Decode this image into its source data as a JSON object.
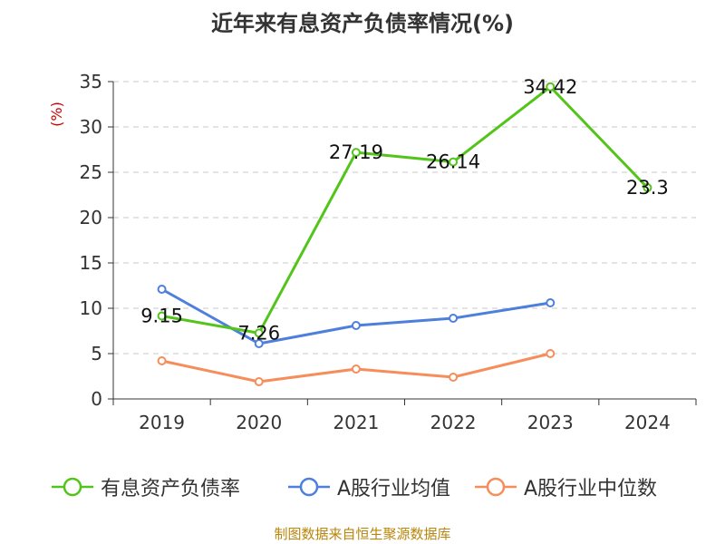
{
  "chart_data": {
    "type": "line",
    "title": "近年来有息资产负债率情况(%)",
    "ylabel": "(%)",
    "categories": [
      "2019",
      "2020",
      "2021",
      "2022",
      "2023",
      "2024"
    ],
    "ylim": [
      0,
      35
    ],
    "yticks": [
      "0",
      "5",
      "10",
      "15",
      "20",
      "25",
      "30",
      "35"
    ],
    "grid": true,
    "legend_position": "bottom",
    "series": [
      {
        "name": "有息资产负债率",
        "color": "#52c41a",
        "values": [
          9.15,
          7.26,
          27.19,
          26.14,
          34.42,
          23.3
        ],
        "labels": [
          "9.15",
          "7.26",
          "27.19",
          "26.14",
          "34.42",
          "23.3"
        ]
      },
      {
        "name": "A股行业均值",
        "color": "#4e7fdc",
        "values": [
          12.1,
          6.1,
          8.1,
          8.9,
          10.6,
          null
        ]
      },
      {
        "name": "A股行业中位数",
        "color": "#f58e5b",
        "values": [
          4.2,
          1.9,
          3.3,
          2.4,
          5.0,
          null
        ]
      }
    ]
  },
  "footer": "制图数据来自恒生聚源数据库"
}
